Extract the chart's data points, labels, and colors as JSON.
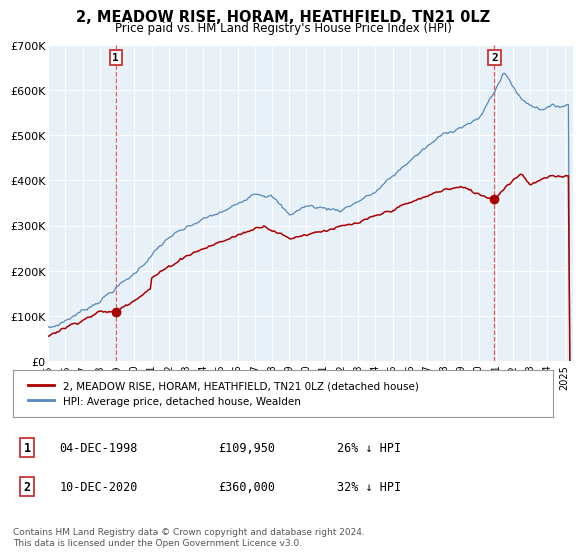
{
  "title": "2, MEADOW RISE, HORAM, HEATHFIELD, TN21 0LZ",
  "subtitle": "Price paid vs. HM Land Registry's House Price Index (HPI)",
  "plot_bg_color": "#e8f0f8",
  "ylim": [
    0,
    700000
  ],
  "yticks": [
    0,
    100000,
    200000,
    300000,
    400000,
    500000,
    600000,
    700000
  ],
  "ytick_labels": [
    "£0",
    "£100K",
    "£200K",
    "£300K",
    "£400K",
    "£500K",
    "£600K",
    "£700K"
  ],
  "xlim_start": 1995.0,
  "xlim_end": 2025.5,
  "xtick_years": [
    1995,
    1996,
    1997,
    1998,
    1999,
    2000,
    2001,
    2002,
    2003,
    2004,
    2005,
    2006,
    2007,
    2008,
    2009,
    2010,
    2011,
    2012,
    2013,
    2014,
    2015,
    2016,
    2017,
    2018,
    2019,
    2020,
    2021,
    2022,
    2023,
    2024,
    2025
  ],
  "transaction1_x": 1998.92,
  "transaction1_y": 109950,
  "transaction2_x": 2020.92,
  "transaction2_y": 360000,
  "vline1_x": 1998.92,
  "vline2_x": 2020.92,
  "legend_line1": "2, MEADOW RISE, HORAM, HEATHFIELD, TN21 0LZ (detached house)",
  "legend_line2": "HPI: Average price, detached house, Wealden",
  "table_row1": [
    "1",
    "04-DEC-1998",
    "£109,950",
    "26% ↓ HPI"
  ],
  "table_row2": [
    "2",
    "10-DEC-2020",
    "£360,000",
    "32% ↓ HPI"
  ],
  "footer": "Contains HM Land Registry data © Crown copyright and database right 2024.\nThis data is licensed under the Open Government Licence v3.0.",
  "red_color": "#aa0000",
  "blue_color": "#5588bb",
  "grid_color": "#cccccc",
  "vline_color": "#dd4444"
}
